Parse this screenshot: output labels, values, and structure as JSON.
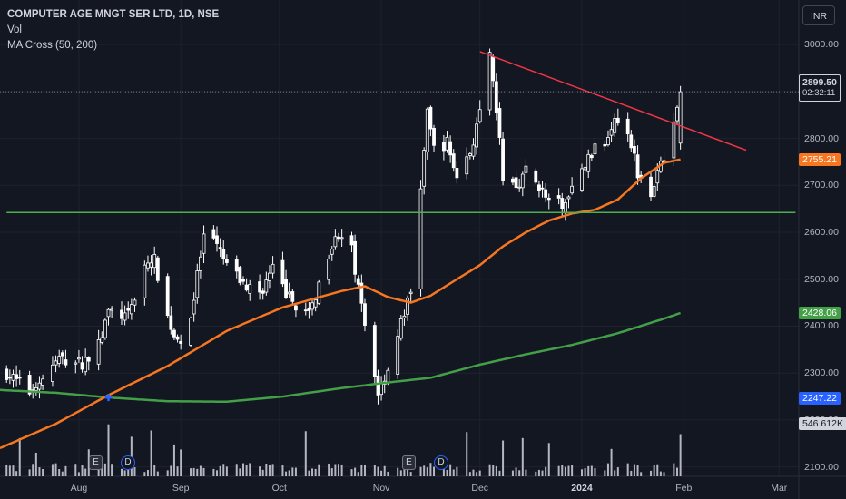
{
  "legend": {
    "title": "COMPUTER AGE MNGT SER LTD, 1D, NSE",
    "vol": "Vol",
    "ma_cross": "MA Cross (50, 200)"
  },
  "currency": "INR",
  "price_tags": {
    "last_price": "2899.50",
    "countdown": "02:32:11",
    "ma50": "2755.21",
    "ma200": "2428.06",
    "low_label": "2247.22",
    "volume": "546.612K"
  },
  "events": [
    "E",
    "D",
    "E",
    "D"
  ],
  "colors": {
    "background": "#131722",
    "candle": "#ffffff",
    "ma50": "#f7761f",
    "ma200": "#43a047",
    "trendline_resistance": "#f23645",
    "trendline_support": "#4caf50",
    "volume": "#d1d4dc"
  },
  "chart_data": {
    "type": "candlestick",
    "title": "COMPUTER AGE MNGT SER LTD, 1D, NSE",
    "y_axis": {
      "ticks": [
        3000,
        2900,
        2800,
        2700,
        2600,
        2500,
        2400,
        2300,
        2200,
        2100
      ],
      "range": [
        2080,
        3095
      ]
    },
    "x_axis": {
      "ticks": [
        "Aug",
        "Sep",
        "Oct",
        "Nov",
        "Dec",
        "2024",
        "Feb",
        "Mar"
      ],
      "range": [
        "2023-07-08",
        "2024-03-07"
      ]
    },
    "last_price": 2899.5,
    "close_anchor_dates": [
      "2023-07-10",
      "2023-07-17",
      "2023-07-21",
      "2023-07-26",
      "2023-08-02",
      "2023-08-07",
      "2023-08-10",
      "2023-08-16",
      "2023-08-21",
      "2023-08-24",
      "2023-08-28",
      "2023-08-31",
      "2023-09-04",
      "2023-09-08",
      "2023-09-12",
      "2023-09-15",
      "2023-09-20",
      "2023-09-25",
      "2023-09-29",
      "2023-10-04",
      "2023-10-10",
      "2023-10-13",
      "2023-10-18",
      "2023-10-23",
      "2023-10-27",
      "2023-10-31",
      "2023-11-03",
      "2023-11-08",
      "2023-11-10",
      "2023-11-15",
      "2023-11-17",
      "2023-11-21",
      "2023-11-24",
      "2023-11-28",
      "2023-12-01",
      "2023-12-04",
      "2023-12-06",
      "2023-12-08",
      "2023-12-12",
      "2023-12-15",
      "2023-12-19",
      "2023-12-22",
      "2023-12-27",
      "2024-01-01",
      "2024-01-04",
      "2024-01-08",
      "2024-01-11",
      "2024-01-15",
      "2024-01-18",
      "2024-01-22",
      "2024-01-25",
      "2024-01-29",
      "2024-01-31"
    ],
    "close_anchor_values": [
      2300,
      2260,
      2290,
      2330,
      2320,
      2360,
      2430,
      2420,
      2530,
      2540,
      2420,
      2360,
      2420,
      2590,
      2570,
      2530,
      2490,
      2470,
      2520,
      2460,
      2420,
      2490,
      2600,
      2560,
      2400,
      2260,
      2310,
      2430,
      2470,
      2850,
      2780,
      2790,
      2720,
      2770,
      2850,
      2970,
      2860,
      2720,
      2700,
      2730,
      2700,
      2660,
      2660,
      2730,
      2770,
      2790,
      2850,
      2820,
      2730,
      2690,
      2740,
      2830,
      2899.5
    ],
    "ma50_anchor_dates": [
      "2023-07-08",
      "2023-07-25",
      "2023-08-10",
      "2023-08-28",
      "2023-09-15",
      "2023-10-02",
      "2023-10-20",
      "2023-10-27",
      "2023-11-03",
      "2023-11-10",
      "2023-11-16",
      "2023-11-24",
      "2023-12-01",
      "2023-12-08",
      "2023-12-15",
      "2023-12-22",
      "2023-12-29",
      "2024-01-05",
      "2024-01-12",
      "2024-01-19",
      "2024-01-26",
      "2024-01-31"
    ],
    "ma50_anchor_values": [
      2140,
      2192,
      2253,
      2315,
      2390,
      2440,
      2475,
      2485,
      2462,
      2450,
      2465,
      2500,
      2530,
      2570,
      2600,
      2625,
      2640,
      2648,
      2670,
      2715,
      2748,
      2755.21
    ],
    "ma200_anchor_dates": [
      "2023-07-08",
      "2023-07-25",
      "2023-08-10",
      "2023-08-28",
      "2023-09-15",
      "2023-10-02",
      "2023-10-20",
      "2023-11-03",
      "2023-11-16",
      "2023-12-01",
      "2023-12-15",
      "2023-12-29",
      "2024-01-12",
      "2024-01-26",
      "2024-01-31"
    ],
    "ma200_anchor_values": [
      2264,
      2258,
      2248,
      2240,
      2239,
      2250,
      2268,
      2280,
      2290,
      2318,
      2340,
      2360,
      2385,
      2416,
      2428.06
    ],
    "golden_cross": {
      "date": "2023-08-10",
      "price": 2248
    },
    "support_line": {
      "from": [
        "2023-07-10",
        2642
      ],
      "to": [
        "2024-03-06",
        2642
      ]
    },
    "resistance_line": {
      "from": [
        "2023-12-01",
        2985
      ],
      "to": [
        "2024-02-20",
        2775
      ]
    },
    "volume_last": "546.612K"
  }
}
